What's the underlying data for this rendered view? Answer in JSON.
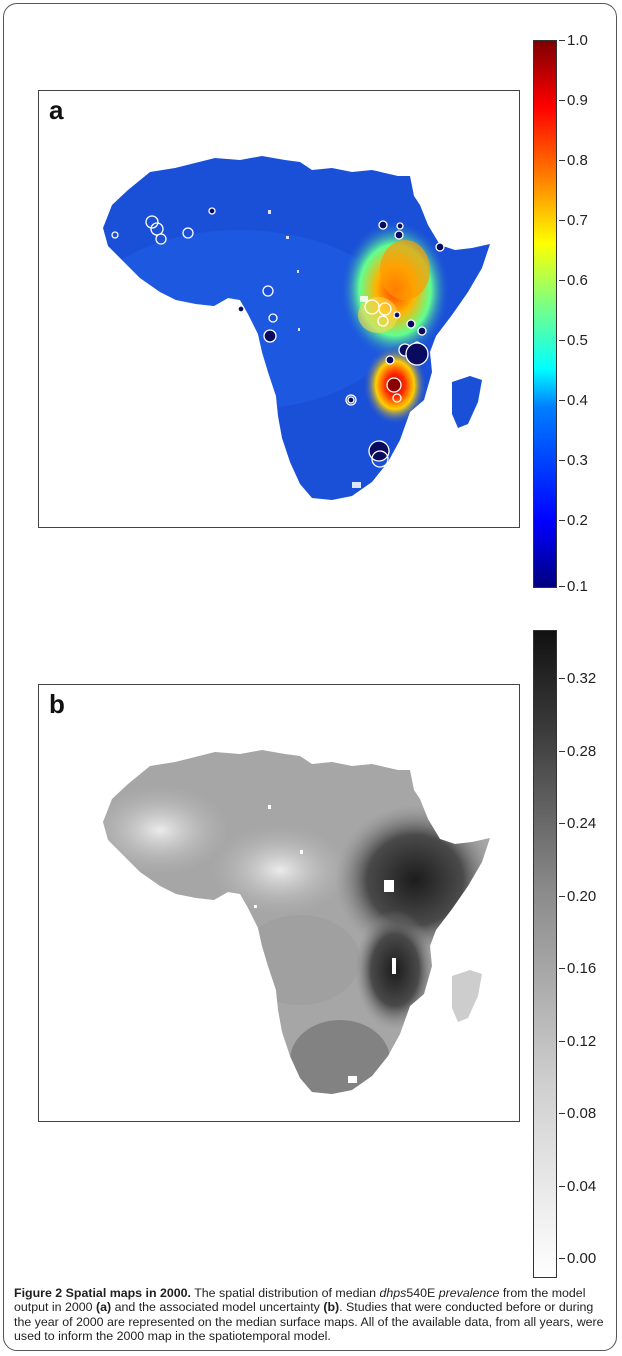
{
  "figure": {
    "panels": [
      {
        "letter": "a",
        "colorbar_ticks": [
          "1.0",
          "0.9",
          "0.8",
          "0.7",
          "0.6",
          "0.5",
          "0.4",
          "0.3",
          "0.2",
          "0.1"
        ],
        "colormap": "jet"
      },
      {
        "letter": "b",
        "colorbar_ticks": [
          "0.32",
          "0.28",
          "0.24",
          "0.20",
          "0.16",
          "0.12",
          "0.08",
          "0.04",
          "0.00"
        ],
        "colormap": "grey"
      }
    ],
    "caption": {
      "lead": "Figure 2 Spatial maps in 2000.",
      "t1": " The spatial distribution of median ",
      "i1": "dhps",
      "t2": "540E ",
      "i2": "prevalence",
      "t3": " from the model output in 2000 ",
      "b1": "(a)",
      "t4": " and the associated model uncertainty ",
      "b2": "(b)",
      "t5": ". Studies that were conducted before or during the year of 2000 are represented on the median surface maps. All of the available data, from all years, were used to inform the 2000 map in the spatiotemporal model."
    }
  },
  "colors": {
    "map_a_base": "#1a4fd8",
    "map_a_hot": "#c81414",
    "map_b_light": "#e4e4e4",
    "map_b_dark": "#2e2e2e",
    "study_marker": "#0a0a5e"
  }
}
